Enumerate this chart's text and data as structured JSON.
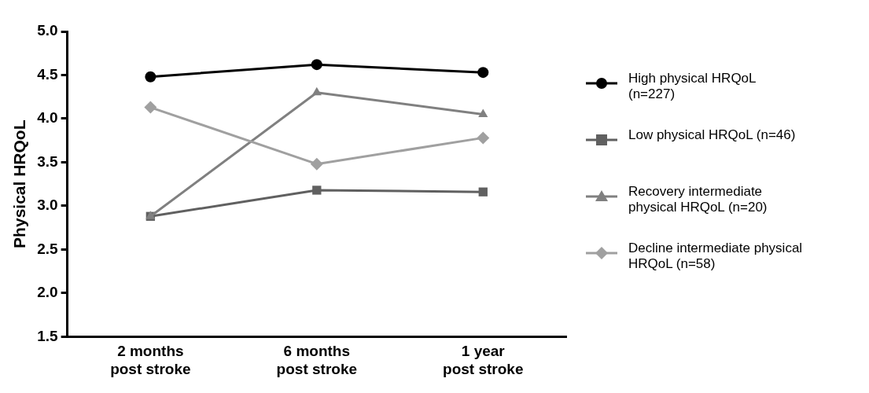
{
  "chart_data": {
    "type": "line",
    "ylabel": "Physical HRQoL",
    "categories": [
      "2 months post stroke",
      "6 months post stroke",
      "1 year post stroke"
    ],
    "ylim": [
      1.5,
      5.0
    ],
    "yticks": [
      {
        "value": 1.5,
        "label": "1.5"
      },
      {
        "value": 2.0,
        "label": "2.0"
      },
      {
        "value": 2.5,
        "label": "2.5"
      },
      {
        "value": 3.0,
        "label": "3.0"
      },
      {
        "value": 3.5,
        "label": "3.5"
      },
      {
        "value": 4.0,
        "label": "4.0"
      },
      {
        "value": 4.5,
        "label": "4.5"
      },
      {
        "value": 5.0,
        "label": "5.0"
      }
    ],
    "grid": false,
    "legend": "right",
    "line_style": "solid",
    "series": [
      {
        "name": "High physical HRQoL (n=227)",
        "color": "#000000",
        "marker": "circle",
        "values": [
          4.48,
          4.62,
          4.53
        ]
      },
      {
        "name": "Low physical HRQoL (n=46)",
        "color": "#606060",
        "marker": "square",
        "values": [
          2.88,
          3.18,
          3.16
        ]
      },
      {
        "name": "Recovery intermediate physical HRQoL (n=20)",
        "color": "#808080",
        "marker": "triangle",
        "values": [
          2.88,
          4.3,
          4.05
        ]
      },
      {
        "name": "Decline intermediate physical HRQoL (n=58)",
        "color": "#a0a0a0",
        "marker": "diamond",
        "values": [
          4.13,
          3.48,
          3.78
        ]
      }
    ]
  }
}
